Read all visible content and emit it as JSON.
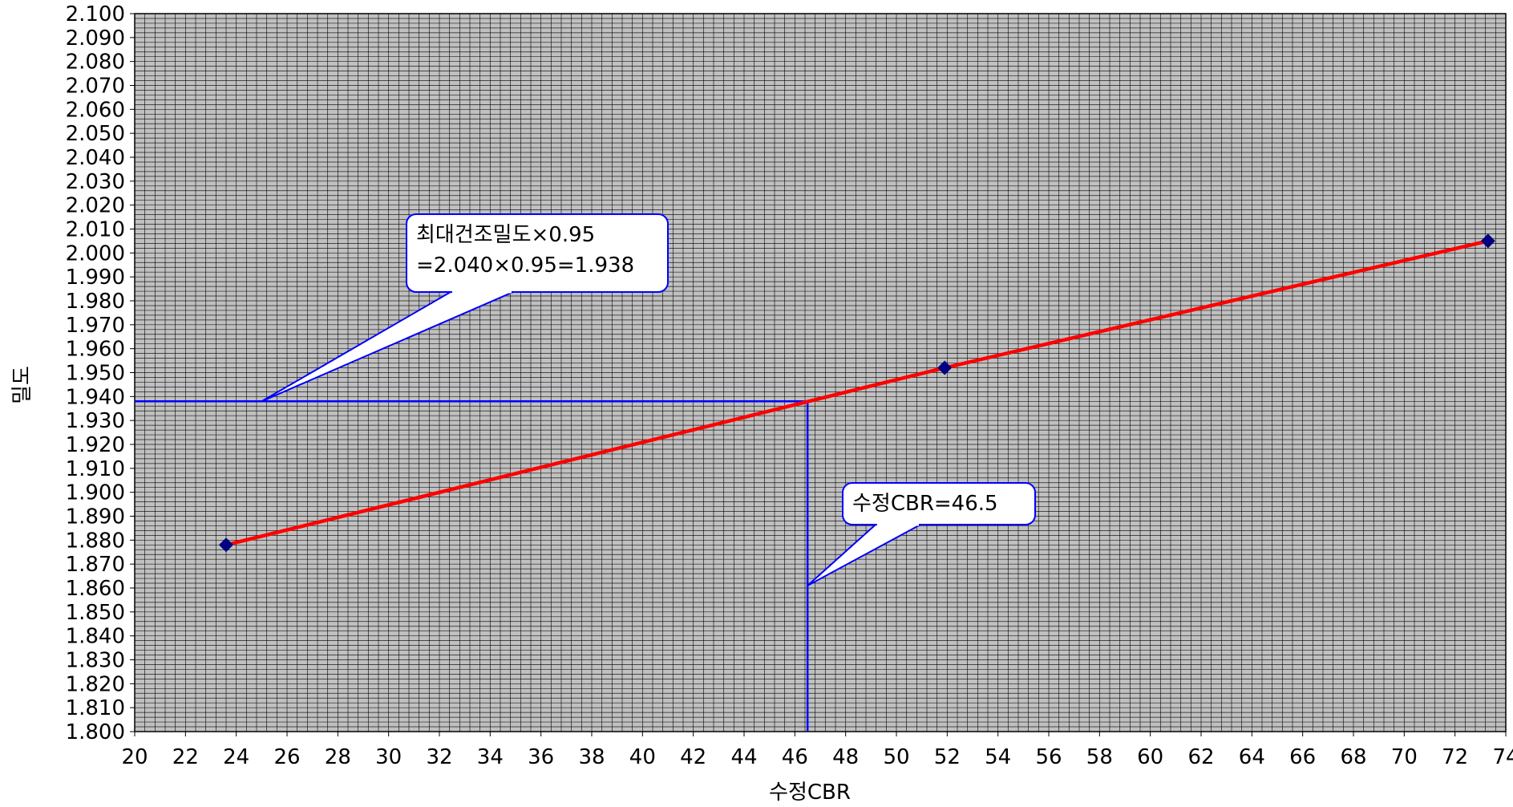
{
  "chart_data": {
    "type": "line",
    "title": "",
    "xlabel": "수정CBR",
    "ylabel": "밀도",
    "xlim": [
      20,
      74
    ],
    "ylim": [
      1.8,
      2.1
    ],
    "x_ticks": [
      "20",
      "22",
      "24",
      "26",
      "28",
      "30",
      "32",
      "34",
      "36",
      "38",
      "40",
      "42",
      "44",
      "46",
      "48",
      "50",
      "52",
      "54",
      "56",
      "58",
      "60",
      "62",
      "64",
      "66",
      "68",
      "70",
      "72",
      "74"
    ],
    "y_ticks": [
      "1.800",
      "1.810",
      "1.820",
      "1.830",
      "1.840",
      "1.850",
      "1.860",
      "1.870",
      "1.880",
      "1.890",
      "1.900",
      "1.910",
      "1.920",
      "1.930",
      "1.940",
      "1.950",
      "1.960",
      "1.970",
      "1.980",
      "1.990",
      "2.000",
      "2.010",
      "2.020",
      "2.030",
      "2.040",
      "2.050",
      "2.060",
      "2.070",
      "2.080",
      "2.090",
      "2.100"
    ],
    "grid": true,
    "legend": "none",
    "series": [
      {
        "points": [
          {
            "x": 23.6,
            "y": 1.878
          },
          {
            "x": 51.9,
            "y": 1.952
          },
          {
            "x": 73.3,
            "y": 2.005
          }
        ],
        "line_color": "#ff0000",
        "marker_color": "#000080"
      }
    ],
    "reference": {
      "y": 1.938,
      "x": 46.5,
      "color": "#0000ff"
    },
    "annotations": [
      {
        "lines": [
          "최대건조밀도×0.95",
          "=2.040×0.95=1.938"
        ],
        "points_to": {
          "x": 25,
          "y": 1.938
        }
      },
      {
        "lines": [
          "수정CBR=46.5"
        ],
        "points_to": {
          "x": 46.5,
          "y": 1.861
        }
      }
    ],
    "colors": {
      "plot_background": "#c0c0c0",
      "grid": "#000000",
      "callout_border": "#0000ff"
    }
  }
}
